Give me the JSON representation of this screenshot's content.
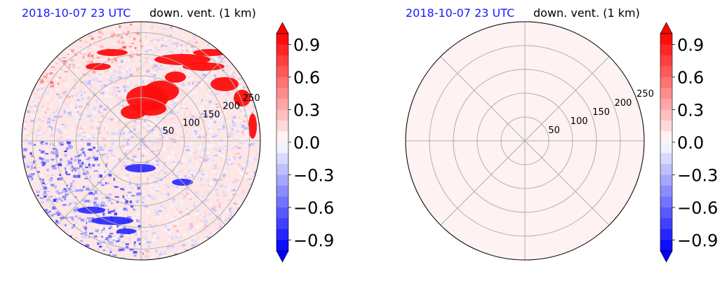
{
  "panels": [
    {
      "id": "left",
      "title_date": "2018-10-07 23 UTC",
      "title_var": "down. vent. (1 km)",
      "field": "observed",
      "chart_data": {
        "type": "heatmap",
        "projection": "polar",
        "radial_ticks": [
          50,
          100,
          150,
          200,
          250
        ],
        "radial_tick_labels": [
          "50",
          "100",
          "150",
          "200",
          "250"
        ],
        "r_max": 275,
        "grid": true,
        "angular_grid_deg": [
          0,
          45,
          90,
          135,
          180,
          225,
          270,
          315
        ],
        "colorbar": {
          "ticks": [
            0.9,
            0.6,
            0.3,
            0.0,
            -0.3,
            -0.6,
            -0.9
          ],
          "tick_labels": [
            "0.9",
            "0.6",
            "0.3",
            "0.0",
            "−0.3",
            "−0.6",
            "−0.9"
          ],
          "vmin": -1.0,
          "vmax": 1.0,
          "levels": 20,
          "extend": "both",
          "cmap": "bwr"
        }
      }
    },
    {
      "id": "right",
      "title_date": "2018-10-07 23 UTC",
      "title_var": "down. vent. (1 km)",
      "field": "uniform",
      "chart_data": {
        "type": "heatmap",
        "projection": "polar",
        "radial_ticks": [
          50,
          100,
          150,
          200,
          250
        ],
        "radial_tick_labels": [
          "50",
          "100",
          "150",
          "200",
          "250"
        ],
        "r_max": 250,
        "grid": true,
        "angular_grid_deg": [
          0,
          45,
          90,
          135,
          180,
          225,
          270,
          315
        ],
        "fill_value": 0.02,
        "colorbar": {
          "ticks": [
            0.9,
            0.6,
            0.3,
            0.0,
            -0.3,
            -0.6,
            -0.9
          ],
          "tick_labels": [
            "0.9",
            "0.6",
            "0.3",
            "0.0",
            "−0.3",
            "−0.6",
            "−0.9"
          ],
          "vmin": -1.0,
          "vmax": 1.0,
          "levels": 20,
          "extend": "both",
          "cmap": "bwr"
        }
      }
    }
  ]
}
